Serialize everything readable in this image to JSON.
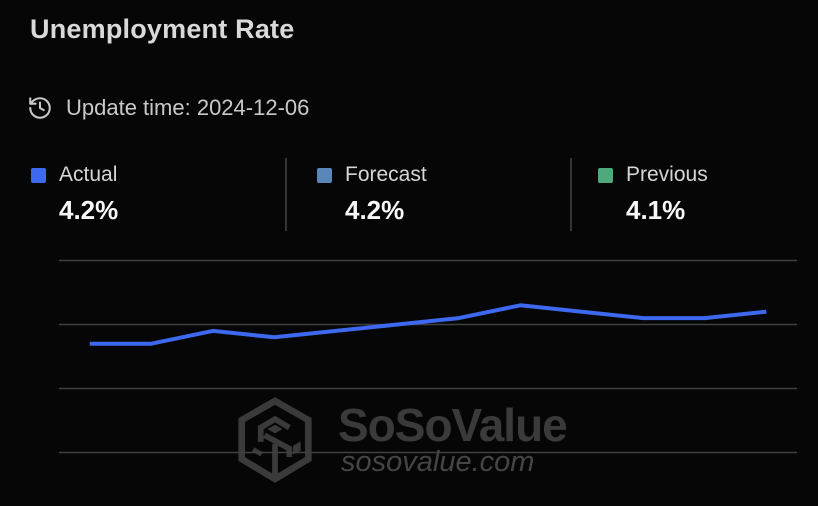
{
  "header": {
    "title": "Unemployment Rate",
    "update_time": "Update time: 2024-12-06"
  },
  "legend": {
    "items": [
      {
        "label": "Actual",
        "value": "4.2%",
        "color": "#3C69F0"
      },
      {
        "label": "Forecast",
        "value": "4.2%",
        "color": "#5A87B9"
      },
      {
        "label": "Previous",
        "value": "4.1%",
        "color": "#50A87D"
      }
    ]
  },
  "chart_data": {
    "type": "line",
    "title": "Unemployment Rate",
    "series": [
      {
        "name": "Actual",
        "color": "#3C69F0",
        "values": [
          3.7,
          3.7,
          3.9,
          3.8,
          3.9,
          4.0,
          4.1,
          4.3,
          4.2,
          4.1,
          4.1,
          4.2
        ]
      }
    ],
    "n_points": 12,
    "ylim": [
      2.0,
      5.0
    ],
    "ylabel": "",
    "xlabel": "",
    "gridlines": [
      5.0,
      4.0,
      3.0,
      2.0
    ],
    "grid": true,
    "x_axis_labels_visible": false,
    "y_axis_labels_visible": false,
    "legend_position": "top"
  },
  "watermark": {
    "brand": "SoSoValue",
    "domain": "sosovalue.com"
  },
  "icons": {
    "update": "history-clock-icon",
    "logo": "sosovalue-cube-logo-icon"
  },
  "appearance": {
    "background": "#060606",
    "gridline_color": "#414141",
    "divider_color": "#343434",
    "title_color": "#D9D9D9",
    "update_text_color": "#C9C9C9",
    "label_color": "#D6D6D6",
    "value_color": "#F7F7F7",
    "watermark_color": "#3A3A3A"
  }
}
